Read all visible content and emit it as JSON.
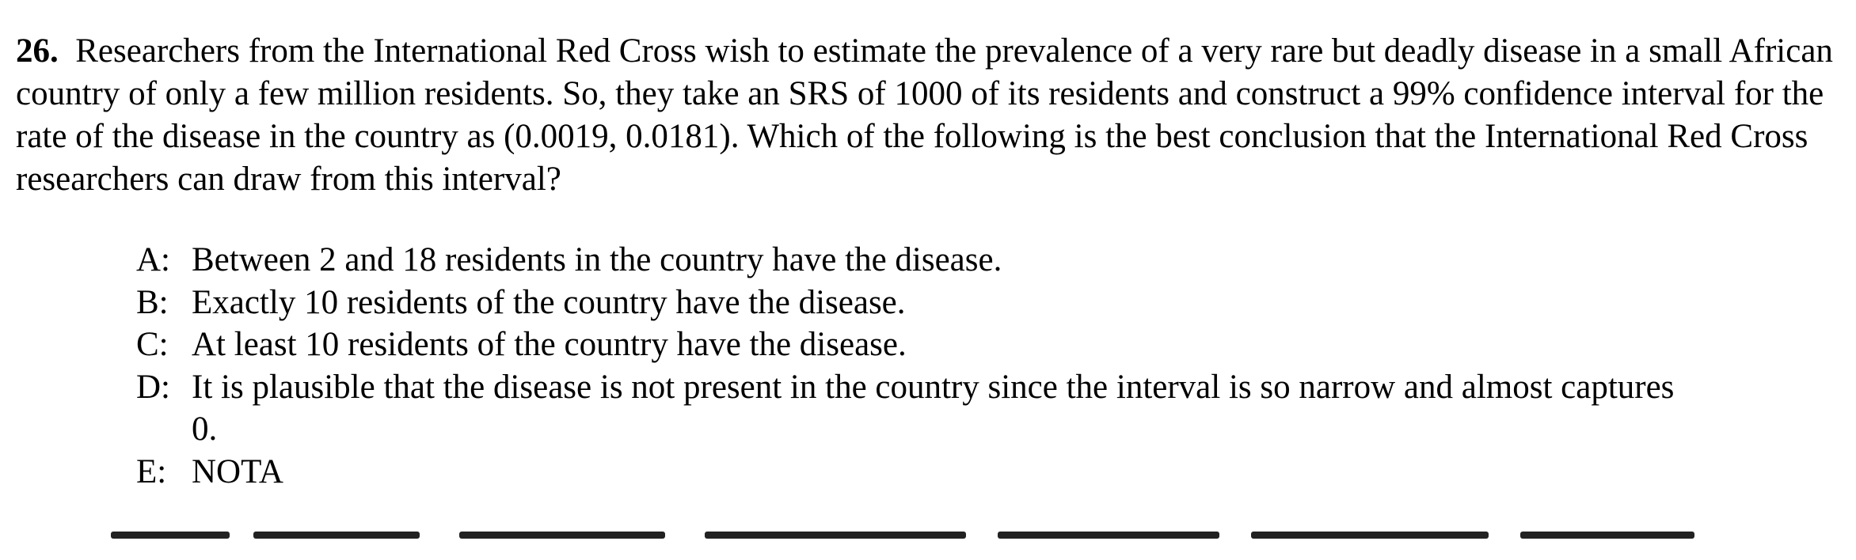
{
  "question": {
    "number": "26.",
    "text": "Researchers from the International Red Cross wish to estimate the prevalence of a very rare but deadly disease in a small African country of only a few million residents.  So, they take an SRS of 1000 of its residents and construct a 99% confidence interval for the rate of the disease in the country as (0.0019, 0.0181).  Which of the following is the best conclusion that the International Red Cross researchers can draw from this interval?"
  },
  "choices": [
    {
      "letter": "A:",
      "text": "Between 2 and 18 residents in the country have the disease."
    },
    {
      "letter": "B:",
      "text": "Exactly 10 residents of the country have the disease."
    },
    {
      "letter": "C:",
      "text": "At least 10 residents of the country have the disease."
    },
    {
      "letter": "D:",
      "text": "It is plausible that the disease is not present in the country since the interval is so narrow and almost captures 0."
    },
    {
      "letter": "E:",
      "text": "NOTA"
    }
  ]
}
